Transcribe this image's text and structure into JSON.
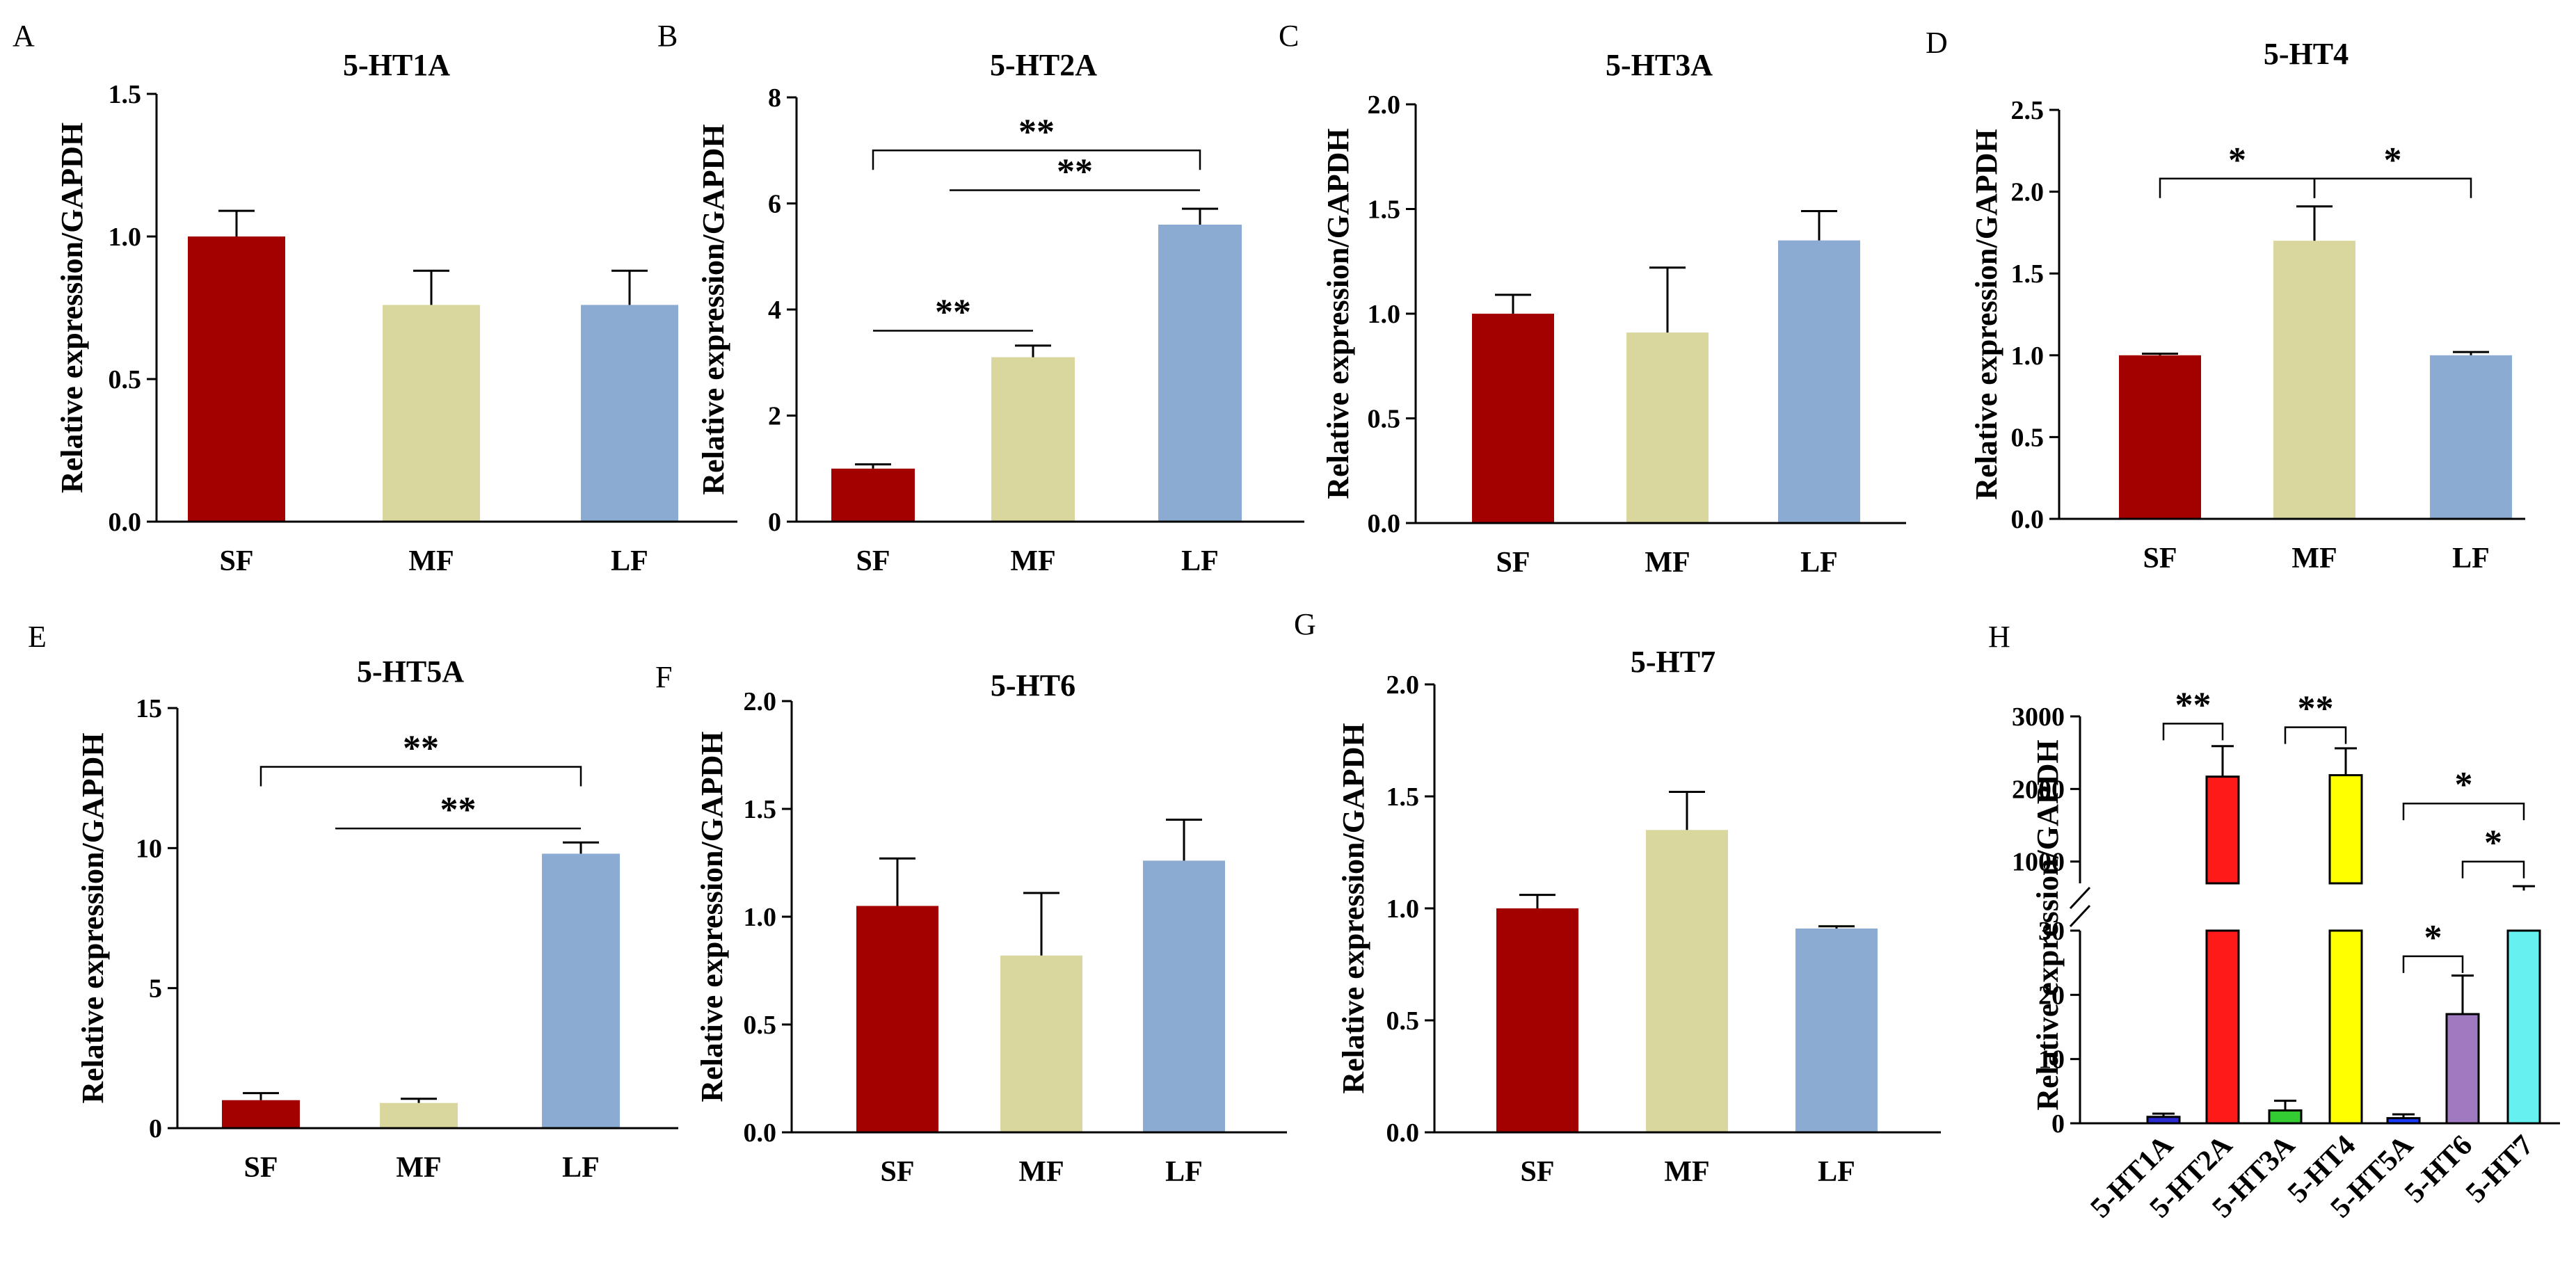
{
  "figure": {
    "bar_colors": {
      "SF": "#a30000",
      "MF": "#d9d79d",
      "LF": "#8cabd2"
    },
    "axis_color": "#000000"
  },
  "chart_data": [
    {
      "panel": "A",
      "type": "bar",
      "title": "5-HT1A",
      "ylabel": "Relative expression/GAPDH",
      "xlabel": "",
      "categories": [
        "SF",
        "MF",
        "LF"
      ],
      "values": [
        1.0,
        0.76,
        0.76
      ],
      "errors": [
        0.09,
        0.12,
        0.12
      ],
      "ylim": [
        0,
        1.5
      ],
      "yticks": [
        "0.0",
        "0.5",
        "1.0",
        "1.5"
      ],
      "significance": []
    },
    {
      "panel": "B",
      "type": "bar",
      "title": "5-HT2A",
      "ylabel": "Relative expression/GAPDH",
      "xlabel": "",
      "categories": [
        "SF",
        "MF",
        "LF"
      ],
      "values": [
        1.0,
        3.1,
        5.6
      ],
      "errors": [
        0.08,
        0.22,
        0.3
      ],
      "ylim": [
        0,
        8
      ],
      "yticks": [
        "0",
        "2",
        "4",
        "6",
        "8"
      ],
      "significance": [
        {
          "from": 0,
          "to": 2,
          "label": "**",
          "style": "bracket",
          "level": 7.0
        },
        {
          "from": 1,
          "to": 2,
          "label": "**",
          "style": "line",
          "level": 6.25
        },
        {
          "from": 0,
          "to": 1,
          "label": "**",
          "style": "line",
          "level": 3.6
        }
      ]
    },
    {
      "panel": "C",
      "type": "bar",
      "title": "5-HT3A",
      "ylabel": "Relative expression/GAPDH",
      "xlabel": "",
      "categories": [
        "SF",
        "MF",
        "LF"
      ],
      "values": [
        1.0,
        0.91,
        1.35
      ],
      "errors": [
        0.09,
        0.31,
        0.14
      ],
      "ylim": [
        0,
        2.0
      ],
      "yticks": [
        "0.0",
        "0.5",
        "1.0",
        "1.5",
        "2.0"
      ],
      "significance": []
    },
    {
      "panel": "D",
      "type": "bar",
      "title": "5-HT4",
      "ylabel": "Relative expression/GAPDH",
      "xlabel": "",
      "categories": [
        "SF",
        "MF",
        "LF"
      ],
      "values": [
        1.0,
        1.7,
        1.0
      ],
      "errors": [
        0.01,
        0.21,
        0.02
      ],
      "ylim": [
        0,
        2.5
      ],
      "yticks": [
        "0.0",
        "0.5",
        "1.0",
        "1.5",
        "2.0",
        "2.5"
      ],
      "significance": [
        {
          "from": 0,
          "to": 1,
          "label": "*",
          "style": "bracket",
          "level": 2.08
        },
        {
          "from": 1,
          "to": 2,
          "label": "*",
          "style": "bracket",
          "level": 2.08
        }
      ]
    },
    {
      "panel": "E",
      "type": "bar",
      "title": "5-HT5A",
      "ylabel": "Relative expression/GAPDH",
      "xlabel": "",
      "categories": [
        "SF",
        "MF",
        "LF"
      ],
      "values": [
        1.0,
        0.9,
        9.8
      ],
      "errors": [
        0.25,
        0.15,
        0.4
      ],
      "ylim": [
        0,
        15
      ],
      "yticks": [
        "0",
        "5",
        "10",
        "15"
      ],
      "significance": [
        {
          "from": 0,
          "to": 2,
          "label": "**",
          "style": "bracket",
          "level": 12.9
        },
        {
          "from": 1,
          "to": 2,
          "label": "**",
          "style": "line",
          "level": 10.7
        }
      ]
    },
    {
      "panel": "F",
      "type": "bar",
      "title": "5-HT6",
      "ylabel": "Relative expression/GAPDH",
      "xlabel": "",
      "categories": [
        "SF",
        "MF",
        "LF"
      ],
      "values": [
        1.05,
        0.82,
        1.26
      ],
      "errors": [
        0.22,
        0.29,
        0.19
      ],
      "ylim": [
        0,
        2.0
      ],
      "yticks": [
        "0.0",
        "0.5",
        "1.0",
        "1.5",
        "2.0"
      ],
      "significance": []
    },
    {
      "panel": "G",
      "type": "bar",
      "title": "5-HT7",
      "ylabel": "Relative expression/GAPDH",
      "xlabel": "",
      "categories": [
        "SF",
        "MF",
        "LF"
      ],
      "values": [
        1.0,
        1.35,
        0.91
      ],
      "errors": [
        0.06,
        0.17,
        0.01
      ],
      "ylim": [
        0,
        2.0
      ],
      "yticks": [
        "0.0",
        "0.5",
        "1.0",
        "1.5",
        "2.0"
      ],
      "significance": []
    },
    {
      "panel": "H",
      "type": "bar",
      "title": "",
      "ylabel": "Relative expression/GAPDH",
      "xlabel": "",
      "categories": [
        "5-HT1A",
        "5-HT2A",
        "5-HT3A",
        "5-HT4",
        "5-HT5A",
        "5-HT6",
        "5-HT7"
      ],
      "values": [
        1.0,
        2170,
        2.0,
        2190,
        0.8,
        17.0,
        600
      ],
      "errors": [
        0.5,
        420,
        1.5,
        370,
        0.6,
        6.0,
        60
      ],
      "colors": [
        "#2b2bd4",
        "#ff1a1a",
        "#33cc33",
        "#ffff00",
        "#1a3aff",
        "#a07ac0",
        "#66f0f0"
      ],
      "axis_break": {
        "lower": [
          0,
          30
        ],
        "upper": [
          700,
          3000
        ]
      },
      "yticks_lower": [
        "0",
        "10",
        "20",
        "30"
      ],
      "yticks_upper": [
        "1000",
        "2000",
        "3000"
      ],
      "significance": [
        {
          "from": 0,
          "to": 1,
          "label": "**",
          "style": "bracket",
          "level": 2900
        },
        {
          "from": 2,
          "to": 3,
          "label": "**",
          "style": "bracket",
          "level": 2850
        },
        {
          "from": 4,
          "to": 6,
          "label": "*",
          "style": "bracket",
          "level": 1800
        },
        {
          "from": 5,
          "to": 6,
          "label": "*",
          "style": "bracket",
          "level": 1000
        },
        {
          "from": 4,
          "to": 5,
          "label": "*",
          "style": "bracket",
          "level": 26
        }
      ]
    }
  ]
}
